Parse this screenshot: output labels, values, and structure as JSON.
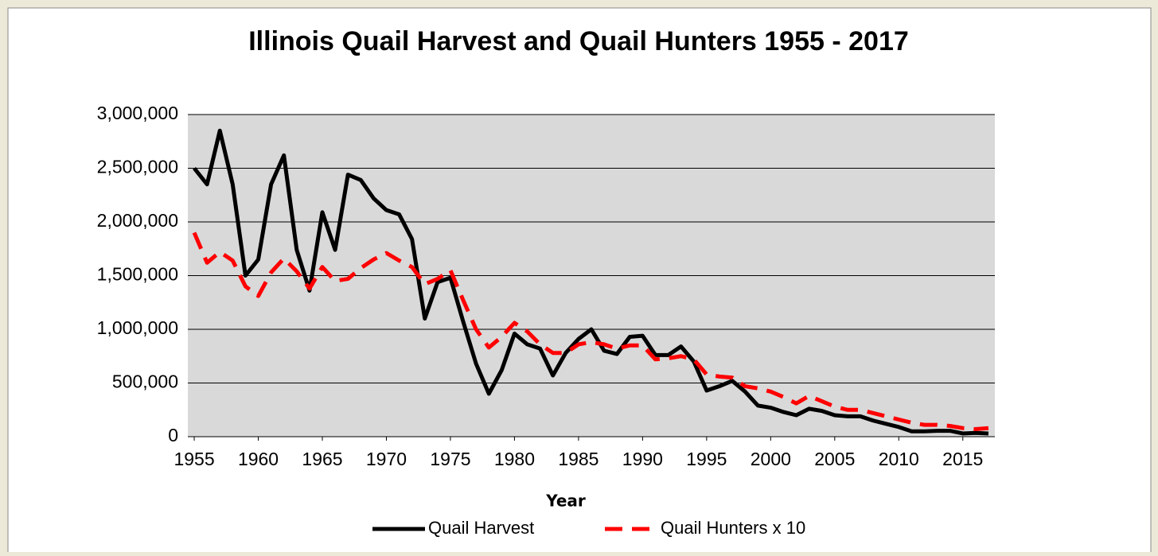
{
  "chart_data": {
    "type": "line",
    "title": "Illinois Quail Harvest and Quail Hunters 1955 - 2017",
    "x_label": "Year",
    "x": [
      1955,
      1956,
      1957,
      1958,
      1959,
      1960,
      1961,
      1962,
      1963,
      1964,
      1965,
      1966,
      1967,
      1968,
      1969,
      1970,
      1971,
      1972,
      1973,
      1974,
      1975,
      1976,
      1977,
      1978,
      1979,
      1980,
      1981,
      1982,
      1983,
      1984,
      1985,
      1986,
      1987,
      1988,
      1989,
      1990,
      1991,
      1992,
      1993,
      1994,
      1995,
      1996,
      1997,
      1998,
      1999,
      2000,
      2001,
      2002,
      2003,
      2004,
      2005,
      2006,
      2007,
      2008,
      2009,
      2010,
      2011,
      2012,
      2013,
      2014,
      2015,
      2016,
      2017
    ],
    "series": [
      {
        "name": "Quail Harvest",
        "color": "#000000",
        "dash": false,
        "values": [
          2500000,
          2350000,
          2850000,
          2350000,
          1500000,
          1650000,
          2350000,
          2620000,
          1740000,
          1360000,
          2090000,
          1740000,
          2440000,
          2390000,
          2220000,
          2110000,
          2070000,
          1840000,
          1100000,
          1440000,
          1480000,
          1070000,
          680000,
          400000,
          620000,
          960000,
          860000,
          820000,
          570000,
          780000,
          910000,
          1000000,
          800000,
          770000,
          930000,
          940000,
          760000,
          760000,
          840000,
          700000,
          430000,
          470000,
          520000,
          420000,
          290000,
          270000,
          230000,
          200000,
          260000,
          240000,
          200000,
          190000,
          190000,
          150000,
          120000,
          90000,
          50000,
          50000,
          55000,
          55000,
          30000,
          35000,
          30000
        ]
      },
      {
        "name": "Quail Hunters x 10",
        "color": "#ff0000",
        "dash": true,
        "values": [
          1900000,
          1620000,
          1720000,
          1640000,
          1400000,
          1310000,
          1530000,
          1660000,
          1540000,
          1380000,
          1580000,
          1450000,
          1470000,
          1570000,
          1650000,
          1710000,
          1640000,
          1580000,
          1420000,
          1470000,
          1550000,
          1270000,
          1000000,
          830000,
          930000,
          1060000,
          980000,
          860000,
          780000,
          780000,
          860000,
          880000,
          860000,
          820000,
          850000,
          850000,
          720000,
          730000,
          750000,
          720000,
          580000,
          560000,
          550000,
          470000,
          450000,
          420000,
          370000,
          310000,
          380000,
          330000,
          280000,
          250000,
          250000,
          220000,
          190000,
          160000,
          130000,
          110000,
          110000,
          100000,
          80000,
          70000,
          80000
        ]
      }
    ],
    "xlim": [
      1954.5,
      2017.5
    ],
    "xticks": [
      1955,
      1960,
      1965,
      1970,
      1975,
      1980,
      1985,
      1990,
      1995,
      2000,
      2005,
      2010,
      2015
    ],
    "ylim": [
      0,
      3000000
    ],
    "yticks": [
      0,
      {
        "value": 500000,
        "label": "500,000"
      },
      {
        "value": 1000000,
        "label": "1,000,000"
      },
      {
        "value": 1500000,
        "label": "1,500,000"
      },
      {
        "value": 2000000,
        "label": "2,000,000"
      },
      {
        "value": 2500000,
        "label": "2,500,000"
      },
      {
        "value": 3000000,
        "label": "3,000,000"
      }
    ],
    "grid": true,
    "legend": "bottom",
    "plot_background": "#d9d9d9"
  }
}
